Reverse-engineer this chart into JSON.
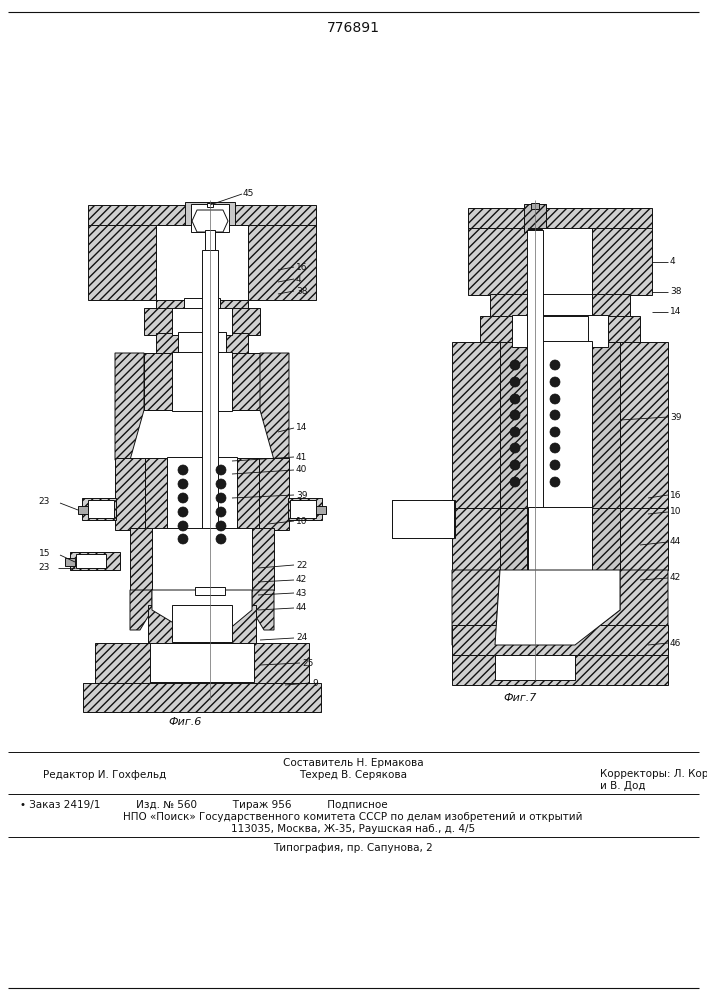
{
  "title": "776891",
  "bg_color": "#ffffff",
  "fig1_caption": "Фиг.6",
  "fig2_caption": "Фиг.7",
  "footer_line1": "Составитель Н. Ермакова",
  "footer_line2_left": "Редактор И. Гохфельд",
  "footer_line2_mid": "Техред В. Серякова",
  "footer_line2_right": "Корректоры: Л. Корогод",
  "footer_line3_right": "и В. Дод",
  "footer_line4": "• Заказ 2419/1           Изд. № 560           Тираж 956           Подписное",
  "footer_line5": "НПО «Поиск» Государственного комитета СССР по делам изобретений и открытий",
  "footer_line6": "113035, Москва, Ж-35, Раушская наб., д. 4/5",
  "footer_line7": "Типография, пр. Сапунова, 2"
}
